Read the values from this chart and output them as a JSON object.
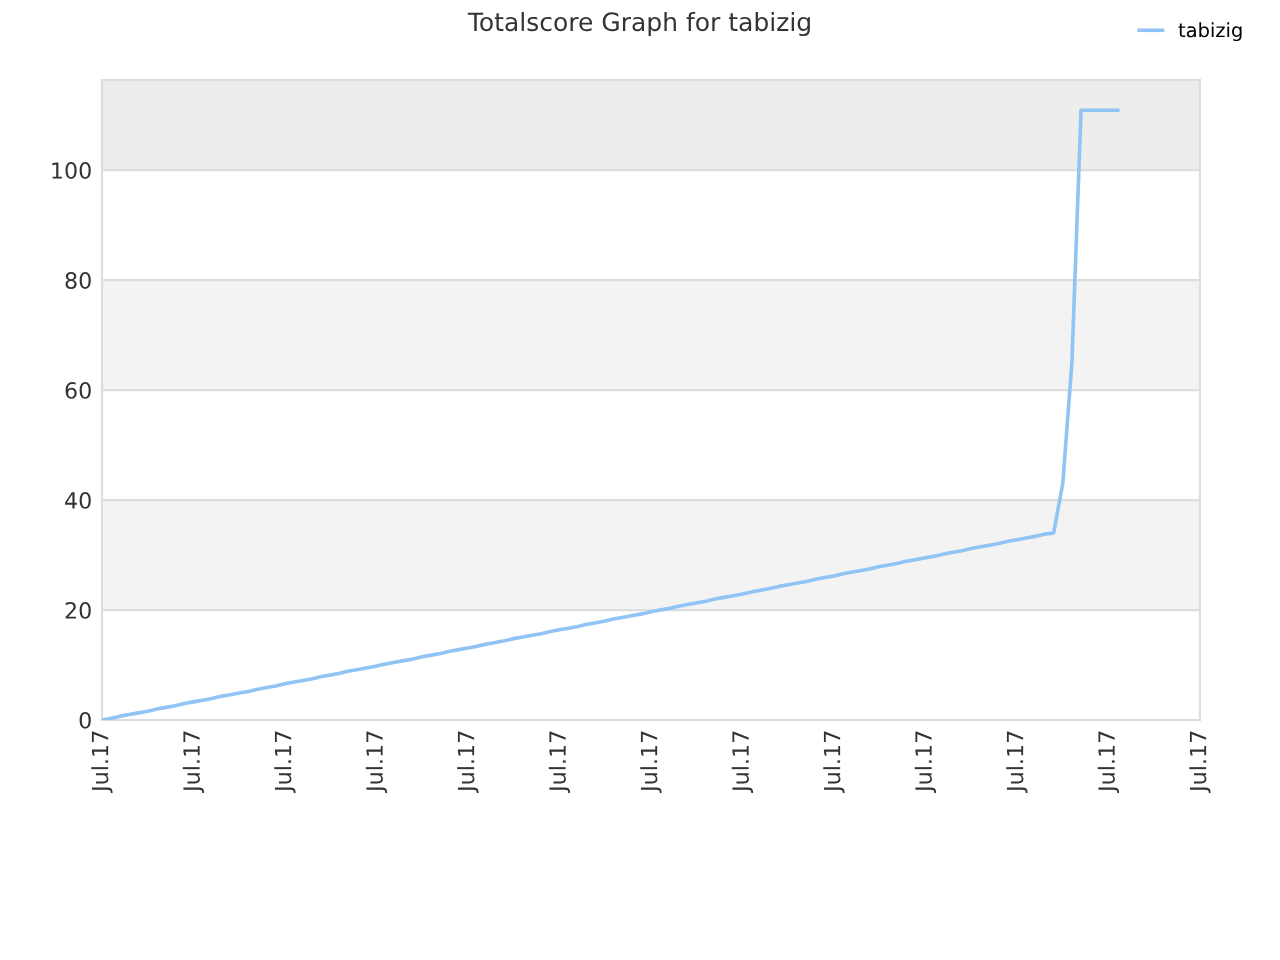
{
  "chart_data": {
    "type": "line",
    "title": "Totalscore Graph for tabizig",
    "categories": [
      "Jul.17",
      null,
      null,
      null,
      null,
      null,
      null,
      null,
      null,
      null,
      "Jul.17",
      null,
      null,
      null,
      null,
      null,
      null,
      null,
      null,
      null,
      "Jul.17",
      null,
      null,
      null,
      null,
      null,
      null,
      null,
      null,
      null,
      "Jul.17",
      null,
      null,
      null,
      null,
      null,
      null,
      null,
      null,
      null,
      "Jul.17",
      null,
      null,
      null,
      null,
      null,
      null,
      null,
      null,
      null,
      "Jul.17",
      null,
      null,
      null,
      null,
      null,
      null,
      null,
      null,
      null,
      "Jul.17",
      null,
      null,
      null,
      null,
      null,
      null,
      null,
      null,
      null,
      "Jul.17",
      null,
      null,
      null,
      null,
      null,
      null,
      null,
      null,
      null,
      "Jul.17",
      null,
      null,
      null,
      null,
      null,
      null,
      null,
      null,
      null,
      "Jul.17",
      null,
      null,
      null,
      null,
      null,
      null,
      null,
      null,
      null,
      "Jul.17",
      null,
      null,
      null,
      null,
      null,
      null,
      null,
      null,
      null,
      "Jul.17",
      null,
      null,
      null,
      null,
      null,
      null,
      null,
      null,
      null,
      "Jul.17"
    ],
    "series": [
      {
        "name": "tabizig",
        "color": "#90c4f4",
        "values": [
          0,
          0.3,
          0.7,
          1.0,
          1.3,
          1.6,
          2.0,
          2.3,
          2.6,
          3.0,
          3.3,
          3.6,
          3.9,
          4.3,
          4.6,
          4.9,
          5.2,
          5.6,
          5.9,
          6.2,
          6.6,
          6.9,
          7.2,
          7.5,
          7.9,
          8.2,
          8.5,
          8.9,
          9.2,
          9.5,
          9.8,
          10.2,
          10.5,
          10.8,
          11.1,
          11.5,
          11.8,
          12.1,
          12.5,
          12.8,
          13.1,
          13.4,
          13.8,
          14.1,
          14.4,
          14.8,
          15.1,
          15.4,
          15.7,
          16.1,
          16.4,
          16.7,
          17.0,
          17.4,
          17.7,
          18.0,
          18.4,
          18.7,
          19.0,
          19.3,
          19.7,
          20.0,
          20.3,
          20.7,
          21.0,
          21.3,
          21.6,
          22.0,
          22.3,
          22.6,
          22.9,
          23.3,
          23.6,
          23.9,
          24.3,
          24.6,
          24.9,
          25.2,
          25.6,
          25.9,
          26.2,
          26.6,
          26.9,
          27.2,
          27.5,
          27.9,
          28.2,
          28.5,
          28.9,
          29.2,
          29.5,
          29.8,
          30.2,
          30.5,
          30.8,
          31.2,
          31.5,
          31.8,
          32.1,
          32.5,
          32.8,
          33.1,
          33.4,
          33.8,
          34.0,
          43,
          65,
          110.9,
          110.9,
          110.9,
          110.9,
          110.9,
          null,
          null,
          null,
          null,
          null,
          null,
          null,
          null,
          null
        ]
      }
    ],
    "ylim": [
      0,
      116.4
    ],
    "yticks": [
      0,
      20,
      40,
      60,
      80,
      100
    ],
    "bands": [
      {
        "axis": "y",
        "from": 20,
        "to": 40,
        "color": "#f3f3f3"
      },
      {
        "axis": "y",
        "from": 60,
        "to": 80,
        "color": "#f3f3f3"
      },
      {
        "axis": "y",
        "from": 100,
        "to": 116.4,
        "color": "#ededed"
      }
    ],
    "grid": "y",
    "legend": "top right",
    "marker": "none",
    "line_style": "solid"
  }
}
